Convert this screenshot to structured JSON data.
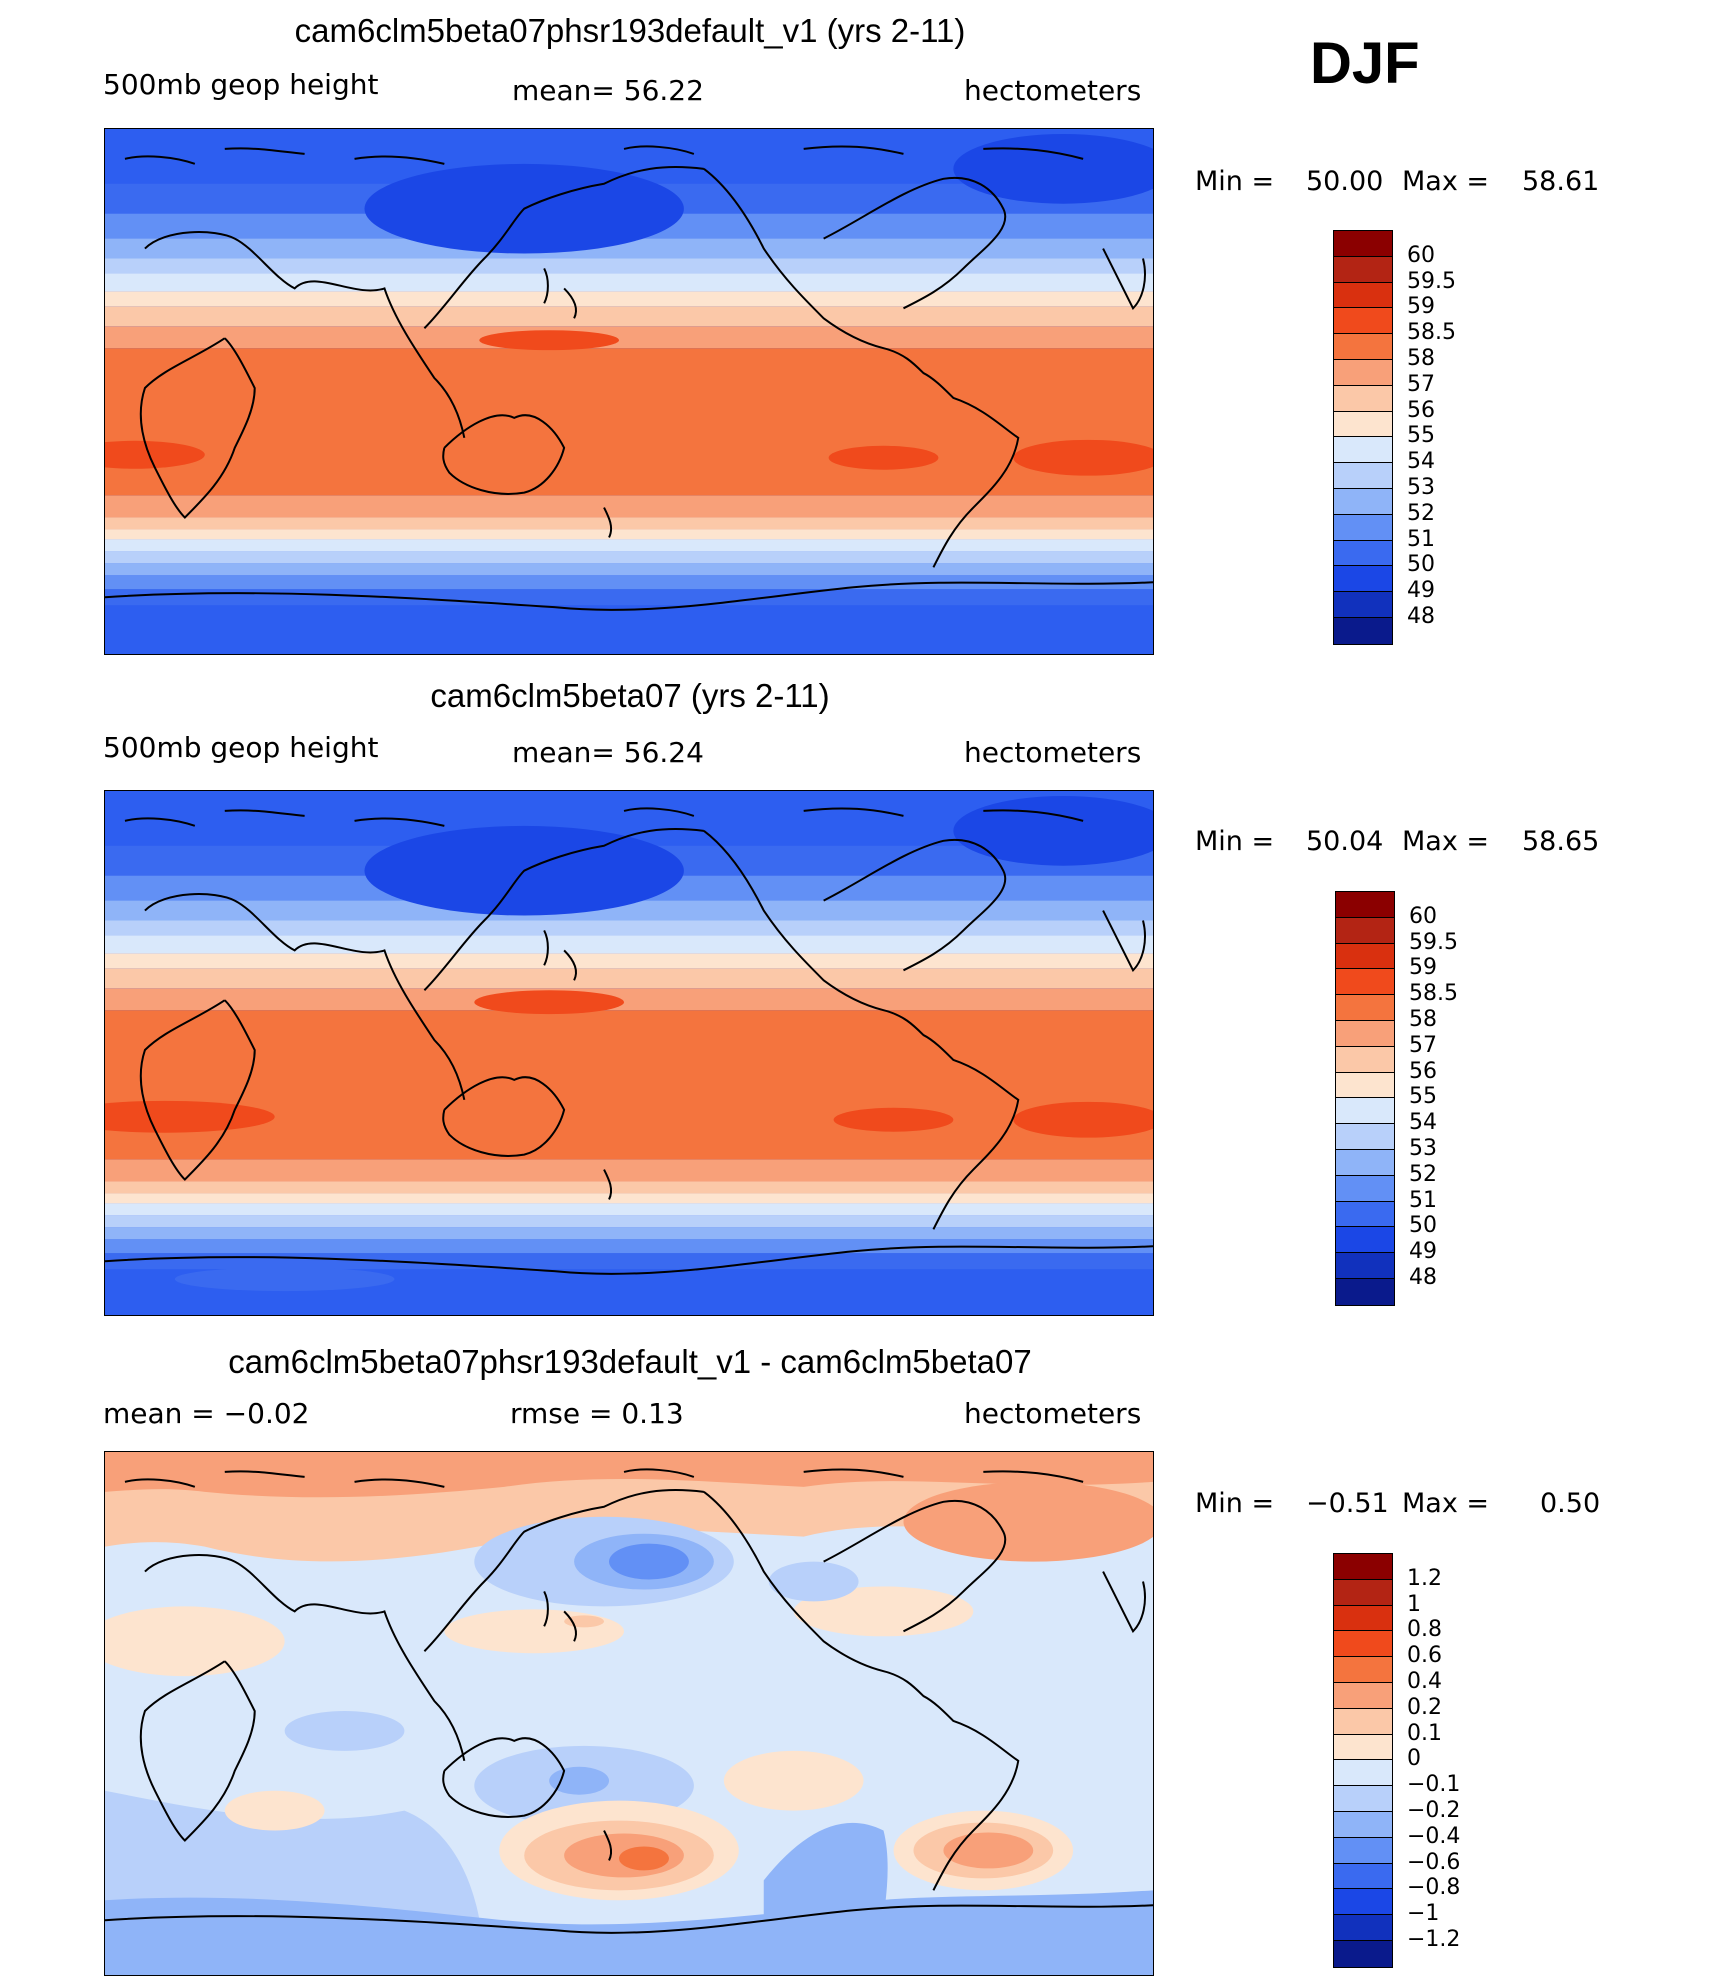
{
  "season": "DJF",
  "panels": [
    {
      "title": "cam6clm5beta07phsr193default_v1 (yrs 2-11)",
      "left_label": "500mb geop height",
      "center_label": "mean=  56.22",
      "right_label": "hectometers",
      "min_label": "Min =",
      "min_value": "50.00",
      "max_label": "Max =",
      "max_value": "58.61",
      "legend_colors": [
        "#8b0000",
        "#b32414",
        "#d9300f",
        "#f04a1c",
        "#f4743e",
        "#f8a079",
        "#fbc8a8",
        "#fde4cf",
        "#d9e8fb",
        "#b8d0fa",
        "#8fb4f8",
        "#6290f5",
        "#3a6af0",
        "#1b47e6",
        "#1131bd",
        "#0a1a8c"
      ],
      "legend_labels": [
        "60",
        "59.5",
        "59",
        "58.5",
        "58",
        "57",
        "56",
        "55",
        "54",
        "53",
        "52",
        "51",
        "50",
        "49",
        "48"
      ]
    },
    {
      "title": "cam6clm5beta07 (yrs 2-11)",
      "left_label": "500mb geop height",
      "center_label": "mean=  56.24",
      "right_label": "hectometers",
      "min_label": "Min =",
      "min_value": "50.04",
      "max_label": "Max =",
      "max_value": "58.65",
      "legend_colors": [
        "#8b0000",
        "#b32414",
        "#d9300f",
        "#f04a1c",
        "#f4743e",
        "#f8a079",
        "#fbc8a8",
        "#fde4cf",
        "#d9e8fb",
        "#b8d0fa",
        "#8fb4f8",
        "#6290f5",
        "#3a6af0",
        "#1b47e6",
        "#1131bd",
        "#0a1a8c"
      ],
      "legend_labels": [
        "60",
        "59.5",
        "59",
        "58.5",
        "58",
        "57",
        "56",
        "55",
        "54",
        "53",
        "52",
        "51",
        "50",
        "49",
        "48"
      ]
    },
    {
      "title": "cam6clm5beta07phsr193default_v1 - cam6clm5beta07",
      "left_label": "mean =  −0.02",
      "center_label": "rmse =   0.13",
      "right_label": "hectometers",
      "min_label": "Min =",
      "min_value": "−0.51",
      "max_label": "Max =",
      "max_value": "0.50",
      "legend_colors": [
        "#8b0000",
        "#b32414",
        "#d9300f",
        "#f04a1c",
        "#f4743e",
        "#f8a079",
        "#fbc8a8",
        "#fde4cf",
        "#d9e8fb",
        "#b8d0fa",
        "#8fb4f8",
        "#6290f5",
        "#3a6af0",
        "#1b47e6",
        "#1131bd",
        "#0a1a8c"
      ],
      "legend_labels": [
        "1.2",
        "1",
        "0.8",
        "0.6",
        "0.4",
        "0.2",
        "0.1",
        "0",
        "−0.1",
        "−0.2",
        "−0.4",
        "−0.6",
        "−0.8",
        "−1",
        "−1.2"
      ]
    }
  ]
}
